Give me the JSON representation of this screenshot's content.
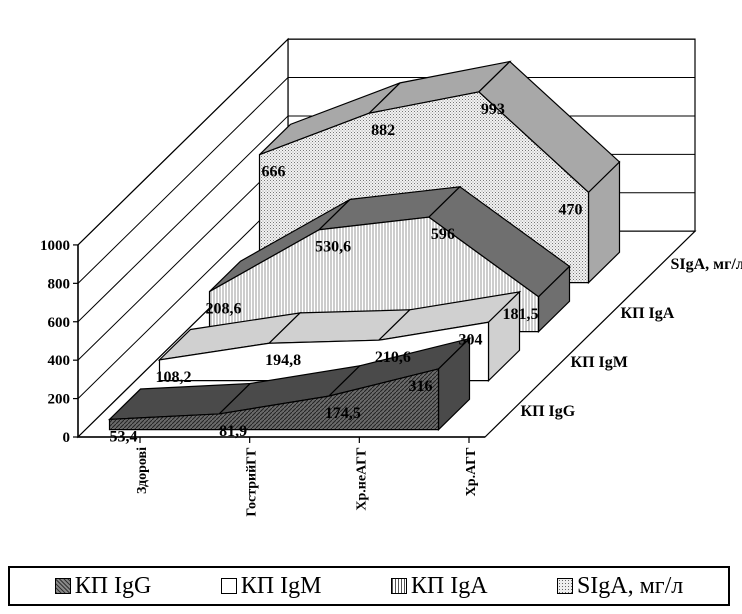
{
  "chart_data": {
    "type": "area",
    "categories": [
      "Здорові",
      "ГострийГГ",
      "Хр.неАГГ",
      "Хр.АГГ"
    ],
    "series": [
      {
        "name": "КП IgG",
        "values": [
          53.4,
          81.9,
          174.5,
          316
        ],
        "labels": [
          "53,4",
          "81,9",
          "174,5",
          "316"
        ],
        "color": "#555555"
      },
      {
        "name": "КП IgM",
        "values": [
          108.2,
          194.8,
          210.6,
          304
        ],
        "labels": [
          "108,2",
          "194,8",
          "210,6",
          "304"
        ],
        "color": "#ffffff"
      },
      {
        "name": "КП IgA",
        "values": [
          208.6,
          530.6,
          596,
          181.5
        ],
        "labels": [
          "208,6",
          "530,6",
          "596",
          "181,5"
        ],
        "color": "#d6d6d6"
      },
      {
        "name": "SIgA, мг/л",
        "values": [
          666,
          882,
          993,
          470
        ],
        "labels": [
          "666",
          "882",
          "993",
          "470"
        ],
        "color": "#cfcfcf"
      }
    ],
    "ylim": [
      0,
      1000
    ],
    "yticks": [
      "0",
      "200",
      "400",
      "600",
      "800",
      "1000"
    ],
    "grid": true,
    "legend_position": "bottom"
  },
  "legend": {
    "items": [
      {
        "label": "КП IgG",
        "swatch": "dark-diagonal"
      },
      {
        "label": "КП IgM",
        "swatch": "white"
      },
      {
        "label": "КП IgA",
        "swatch": "vertical-lines"
      },
      {
        "label": "SIgA, мг/л",
        "swatch": "dotted"
      }
    ]
  }
}
